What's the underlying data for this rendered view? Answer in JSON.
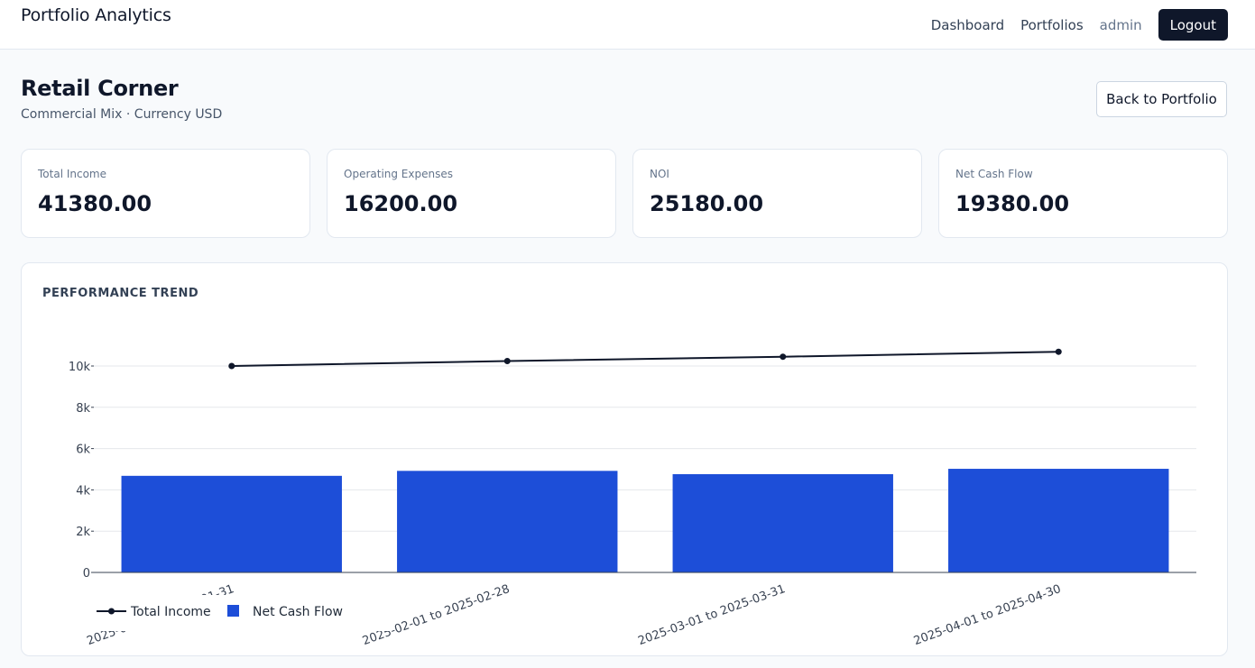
{
  "header": {
    "brand": "Portfolio Analytics",
    "nav": {
      "dashboard": "Dashboard",
      "portfolios": "Portfolios",
      "user": "admin",
      "logout": "Logout"
    }
  },
  "page": {
    "title": "Retail Corner",
    "subtitle": "Commercial Mix · Currency USD",
    "back_label": "Back to Portfolio"
  },
  "metrics": [
    {
      "label": "Total Income",
      "value": "41380.00"
    },
    {
      "label": "Operating Expenses",
      "value": "16200.00"
    },
    {
      "label": "NOI",
      "value": "25180.00"
    },
    {
      "label": "Net Cash Flow",
      "value": "19380.00"
    }
  ],
  "panel": {
    "title": "PERFORMANCE TREND"
  },
  "colors": {
    "bar": "#1d4ed8",
    "line": "#0f172a",
    "accent_dark": "#0f172a"
  },
  "chart_data": {
    "type": "bar",
    "categories": [
      "2025-01-01 to 2025-01-31",
      "2025-02-01 to 2025-02-28",
      "2025-03-01 to 2025-03-31",
      "2025-04-01 to 2025-04-30"
    ],
    "y_ticks": [
      "0",
      "2k",
      "4k",
      "6k",
      "8k",
      "10k"
    ],
    "ylim": [
      0,
      10000
    ],
    "grid": true,
    "legend_position": "bottom-left",
    "series": [
      {
        "name": "Total Income",
        "kind": "line",
        "values": [
          10000,
          10240,
          10450,
          10690
        ]
      },
      {
        "name": "Net Cash Flow",
        "kind": "bar",
        "values": [
          4680,
          4920,
          4760,
          5020
        ]
      }
    ]
  }
}
